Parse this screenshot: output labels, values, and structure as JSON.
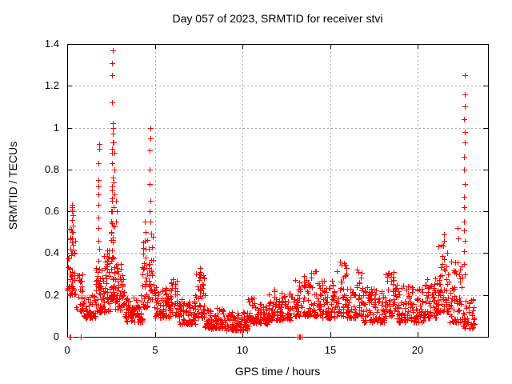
{
  "colors": {
    "marker": "#ff0000",
    "grid": "#aaaaaa",
    "frame": "#000000",
    "text": "#000000",
    "background": "#ffffff"
  },
  "chart_data": {
    "type": "scatter",
    "title": "Day 057 of 2023, SRMTID for receiver stvi",
    "xlabel": "GPS time / hours",
    "ylabel": "SRMTID / TECUs",
    "xlim": [
      0,
      24
    ],
    "ylim": [
      0,
      1.4
    ],
    "x_ticks": [
      0,
      5,
      10,
      15,
      20
    ],
    "x_tick_labels": [
      "0",
      "5",
      "10",
      "15",
      "20"
    ],
    "y_ticks": [
      0,
      0.2,
      0.4,
      0.6,
      0.8,
      1.0,
      1.2,
      1.4
    ],
    "y_tick_labels": [
      "0",
      "0.2",
      "0.4",
      "0.6",
      "0.8",
      "1",
      "1.2",
      "1.4"
    ],
    "grid": true,
    "legend": null,
    "marker": "plus",
    "marker_color": "#ff0000",
    "band_segment_format": "[x_start_hours, x_end_hours, n_points, y_min_TECUs, y_max_TECUs]",
    "band_segments": [
      [
        0.0,
        0.12,
        8,
        0.22,
        0.42
      ],
      [
        0.12,
        0.5,
        42,
        0.2,
        0.52
      ],
      [
        0.5,
        0.95,
        26,
        0.12,
        0.3
      ],
      [
        0.95,
        1.62,
        48,
        0.09,
        0.2
      ],
      [
        1.62,
        1.95,
        38,
        0.12,
        0.38
      ],
      [
        1.95,
        2.45,
        48,
        0.12,
        0.42
      ],
      [
        2.45,
        2.72,
        40,
        0.18,
        0.55
      ],
      [
        2.72,
        3.25,
        52,
        0.13,
        0.36
      ],
      [
        3.25,
        4.3,
        80,
        0.07,
        0.2
      ],
      [
        4.3,
        4.62,
        30,
        0.14,
        0.48
      ],
      [
        4.62,
        4.95,
        32,
        0.18,
        0.5
      ],
      [
        4.95,
        5.85,
        70,
        0.09,
        0.24
      ],
      [
        5.85,
        6.35,
        40,
        0.1,
        0.28
      ],
      [
        6.35,
        7.3,
        70,
        0.06,
        0.18
      ],
      [
        7.3,
        7.85,
        48,
        0.09,
        0.33
      ],
      [
        7.85,
        9.0,
        85,
        0.04,
        0.14
      ],
      [
        9.0,
        10.3,
        95,
        0.03,
        0.12
      ],
      [
        10.3,
        10.7,
        30,
        0.07,
        0.2
      ],
      [
        10.7,
        11.5,
        60,
        0.06,
        0.16
      ],
      [
        11.5,
        12.0,
        40,
        0.08,
        0.23
      ],
      [
        12.0,
        12.9,
        65,
        0.08,
        0.21
      ],
      [
        12.9,
        13.45,
        35,
        0.1,
        0.28
      ],
      [
        13.45,
        14.3,
        62,
        0.1,
        0.32
      ],
      [
        14.3,
        15.35,
        75,
        0.09,
        0.28
      ],
      [
        15.35,
        15.95,
        45,
        0.1,
        0.37
      ],
      [
        15.95,
        16.45,
        35,
        0.09,
        0.24
      ],
      [
        16.45,
        16.85,
        30,
        0.1,
        0.33
      ],
      [
        16.85,
        18.15,
        90,
        0.07,
        0.24
      ],
      [
        18.15,
        18.75,
        45,
        0.1,
        0.31
      ],
      [
        18.75,
        20.3,
        110,
        0.07,
        0.25
      ],
      [
        20.3,
        21.15,
        65,
        0.09,
        0.28
      ],
      [
        21.15,
        21.8,
        55,
        0.12,
        0.46
      ],
      [
        21.8,
        22.55,
        55,
        0.07,
        0.36
      ],
      [
        22.55,
        23.25,
        40,
        0.04,
        0.2
      ]
    ],
    "spike_columns": [
      {
        "x": 0.3,
        "ys": [
          0.63,
          0.62,
          0.61,
          0.6,
          0.58,
          0.56,
          0.53,
          0.5,
          0.47,
          0.44
        ]
      },
      {
        "x": 1.78,
        "ys": [
          0.92,
          0.9,
          0.83,
          0.75,
          0.72,
          0.68,
          0.63,
          0.57,
          0.52,
          0.46,
          0.42
        ]
      },
      {
        "x": 2.52,
        "ys": [
          0.72,
          0.66,
          0.6,
          0.55,
          0.5
        ]
      },
      {
        "x": 2.58,
        "ys": [
          1.37,
          1.31,
          1.25,
          1.12,
          1.02,
          1.0,
          0.97,
          0.93,
          0.9,
          0.88,
          0.83,
          0.76,
          0.7,
          0.65,
          0.6
        ]
      },
      {
        "x": 2.66,
        "ys": [
          0.93,
          0.88,
          0.8,
          0.74,
          0.68,
          0.62
        ]
      },
      {
        "x": 2.8,
        "ys": [
          0.65,
          0.6,
          0.55
        ]
      },
      {
        "x": 4.45,
        "ys": [
          0.55,
          0.5,
          0.46,
          0.42,
          0.38
        ]
      },
      {
        "x": 4.73,
        "ys": [
          1.0,
          0.95,
          0.89,
          0.8,
          0.73,
          0.65,
          0.6,
          0.55
        ]
      },
      {
        "x": 7.55,
        "ys": [
          0.33,
          0.3,
          0.27,
          0.24
        ]
      },
      {
        "x": 21.45,
        "ys": [
          0.49,
          0.46
        ]
      },
      {
        "x": 22.3,
        "ys": [
          0.52,
          0.47
        ]
      },
      {
        "x": 22.65,
        "ys": [
          1.25,
          1.16,
          1.1,
          1.04,
          0.98,
          0.93,
          0.86,
          0.8,
          0.73,
          0.67,
          0.62,
          0.55,
          0.51,
          0.46,
          0.41,
          0.35,
          0.3
        ]
      }
    ],
    "zero_points": [
      0.12,
      0.18,
      0.78,
      13.15,
      13.22,
      13.3,
      13.38
    ]
  }
}
